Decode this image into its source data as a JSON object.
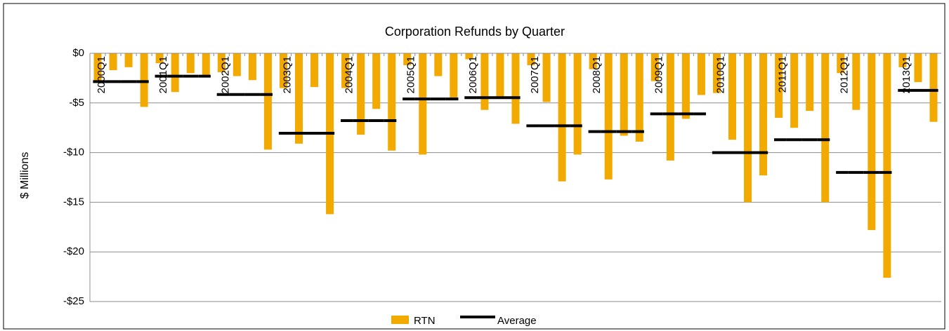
{
  "chart_data": {
    "type": "bar",
    "title": "Corporation Refunds by Quarter",
    "y_label": "$ Millions",
    "categories": [
      "2000Q1",
      null,
      null,
      null,
      "2001Q1",
      null,
      null,
      null,
      "2002Q1",
      null,
      null,
      null,
      "2003Q1",
      null,
      null,
      null,
      "2004Q1",
      null,
      null,
      null,
      "2005Q1",
      null,
      null,
      null,
      "2006Q1",
      null,
      null,
      null,
      "2007Q1",
      null,
      null,
      null,
      "2008Q1",
      null,
      null,
      null,
      "2009Q1",
      null,
      null,
      null,
      "2010Q1",
      null,
      null,
      null,
      "2011Q1",
      null,
      null,
      null,
      "2012Q1",
      null,
      null,
      null,
      "2013Q1",
      null,
      null
    ],
    "series": [
      {
        "name": "RTN",
        "color": "#f2a900",
        "values": [
          -2.9,
          -1.7,
          -1.4,
          -5.4,
          -1.0,
          -3.9,
          -2.0,
          -2.2,
          -1.9,
          -2.3,
          -2.7,
          -9.7,
          -3.5,
          -9.1,
          -3.4,
          -16.2,
          -3.5,
          -8.2,
          -5.6,
          -9.8,
          -1.2,
          -10.2,
          -2.3,
          -4.7,
          -0.6,
          -5.7,
          -4.5,
          -7.1,
          -1.2,
          -4.9,
          -12.9,
          -10.2,
          -1.6,
          -12.7,
          -8.3,
          -8.9,
          -2.8,
          -10.8,
          -6.6,
          -4.2,
          -4.0,
          -8.7,
          -15.0,
          -12.3,
          -6.5,
          -7.5,
          -5.8,
          -15.0,
          -2.0,
          -5.7,
          -17.8,
          -22.6,
          -1.4,
          -2.9,
          -6.9
        ]
      },
      {
        "name": "Average",
        "type": "line",
        "color": "#000000",
        "values": [
          -2.85,
          -2.85,
          -2.85,
          -2.85,
          -2.3,
          -2.3,
          -2.3,
          -2.3,
          -4.15,
          -4.15,
          -4.15,
          -4.15,
          -8.05,
          -8.05,
          -8.05,
          -8.05,
          -6.78,
          -6.78,
          -6.78,
          -6.78,
          -4.6,
          -4.6,
          -4.6,
          -4.6,
          -4.47,
          -4.47,
          -4.47,
          -4.47,
          -7.3,
          -7.3,
          -7.3,
          -7.3,
          -7.88,
          -7.88,
          -7.88,
          -7.88,
          -6.1,
          -6.1,
          -6.1,
          -6.1,
          -10.0,
          -10.0,
          -10.0,
          -10.0,
          -8.7,
          -8.7,
          -8.7,
          -8.7,
          -12.0,
          -12.0,
          -12.0,
          -12.0,
          -3.73,
          -3.73,
          -3.73
        ]
      }
    ],
    "ylim": [
      -25,
      0
    ],
    "yticks": [
      {
        "value": 0,
        "label": "$0"
      },
      {
        "value": -5,
        "label": "-$5"
      },
      {
        "value": -10,
        "label": "-$10"
      },
      {
        "value": -15,
        "label": "-$15"
      },
      {
        "value": -20,
        "label": "-$20"
      },
      {
        "value": -25,
        "label": "-$25"
      }
    ],
    "grid": true,
    "legend": "bottom"
  }
}
